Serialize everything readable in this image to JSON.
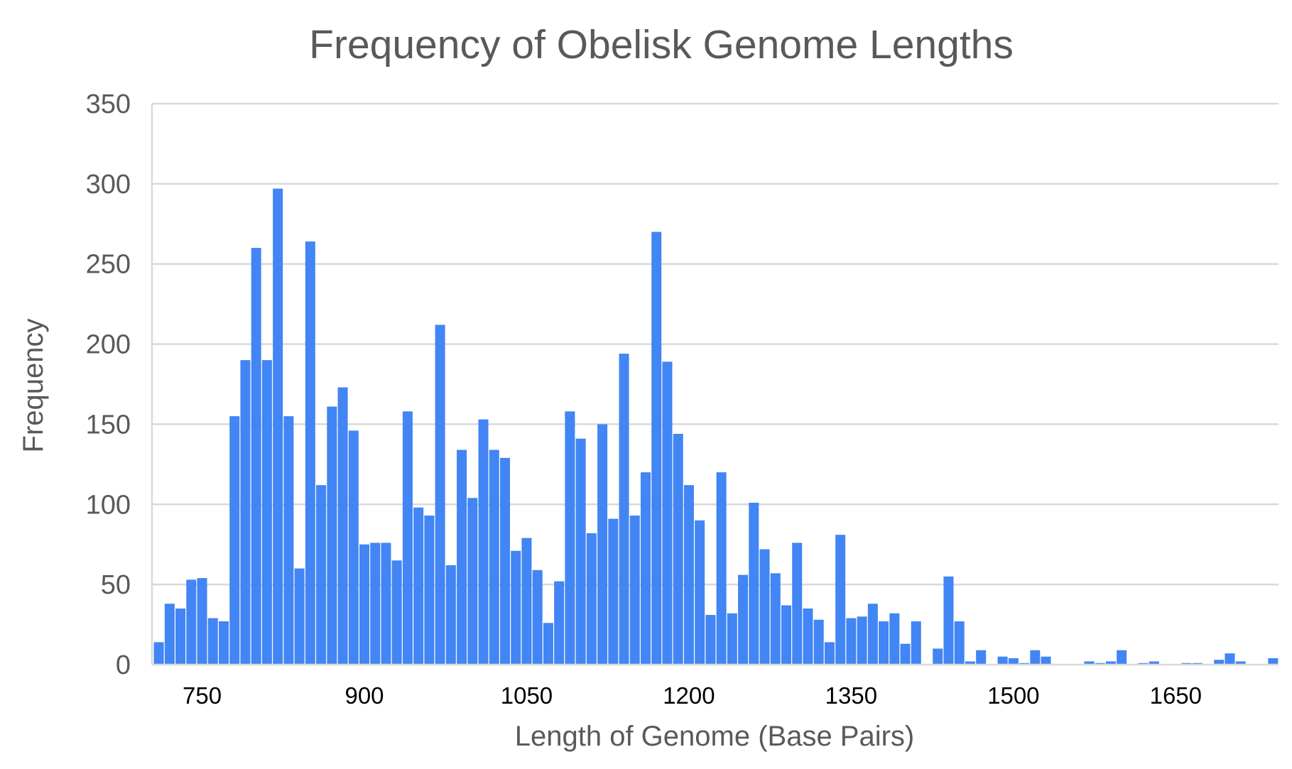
{
  "chart_data": {
    "type": "bar",
    "title": "Frequency of Obelisk Genome Lengths",
    "xlabel": "Length of Genome (Base Pairs)",
    "ylabel": "Frequency",
    "ylim": [
      0,
      350
    ],
    "yticks": [
      "0",
      "50",
      "100",
      "150",
      "200",
      "250",
      "300",
      "350"
    ],
    "xticks": [
      "750",
      "900",
      "1050",
      "1200",
      "1350",
      "1500",
      "1650"
    ],
    "xlim": [
      705,
      1745
    ],
    "bin_start": 705,
    "bin_width": 10,
    "grid": true,
    "bar_color": "#4285f4",
    "values": [
      14,
      38,
      35,
      53,
      54,
      29,
      27,
      155,
      190,
      260,
      190,
      297,
      155,
      60,
      264,
      112,
      161,
      173,
      146,
      75,
      76,
      76,
      65,
      158,
      98,
      93,
      212,
      62,
      134,
      104,
      153,
      134,
      129,
      71,
      79,
      59,
      26,
      52,
      158,
      141,
      82,
      150,
      91,
      194,
      93,
      120,
      270,
      189,
      144,
      112,
      90,
      31,
      120,
      32,
      56,
      101,
      72,
      57,
      37,
      76,
      35,
      28,
      14,
      81,
      29,
      30,
      38,
      27,
      32,
      13,
      27,
      0,
      10,
      55,
      27,
      2,
      9,
      0,
      5,
      4,
      1,
      9,
      5,
      0,
      0,
      0,
      2,
      1,
      2,
      9,
      0,
      1,
      2,
      0,
      0,
      1,
      1,
      0,
      3,
      7,
      2,
      0,
      0,
      4
    ]
  }
}
